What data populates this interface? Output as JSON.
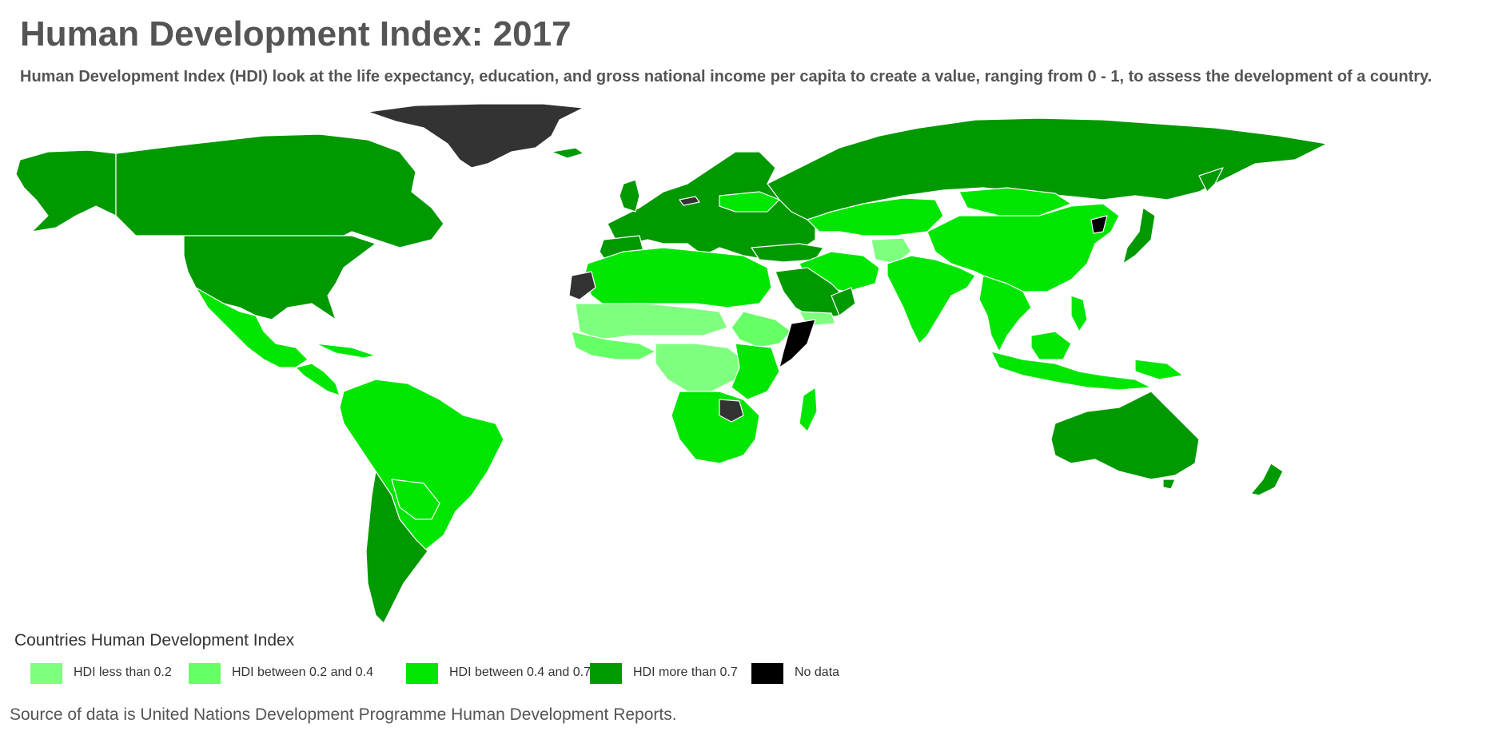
{
  "title": "Human Development Index: 2017",
  "subtitle": "Human Development Index (HDI) look at the life expectancy, education, and gross national income per capita to create a value, ranging from 0 - 1, to assess the development of a country.",
  "legend": {
    "title": "Countries Human Development Index",
    "items": [
      {
        "label": "HDI less than 0.2",
        "color": "#7fff7f"
      },
      {
        "label": "HDI between 0.2 and 0.4",
        "color": "#66ff66"
      },
      {
        "label": "HDI between 0.4 and 0.7",
        "color": "#00e600"
      },
      {
        "label": "HDI more than 0.7",
        "color": "#009900"
      },
      {
        "label": "No data",
        "color": "#000000"
      }
    ]
  },
  "map_colors": {
    "very_high": "#009900",
    "medium": "#00e600",
    "low": "#66ff66",
    "very_low": "#7fff7f",
    "no_data": "#333333",
    "no_data_dark": "#000000",
    "border": "#ffffff"
  },
  "source": "Source of data is United Nations Development Programme Human Development Reports."
}
